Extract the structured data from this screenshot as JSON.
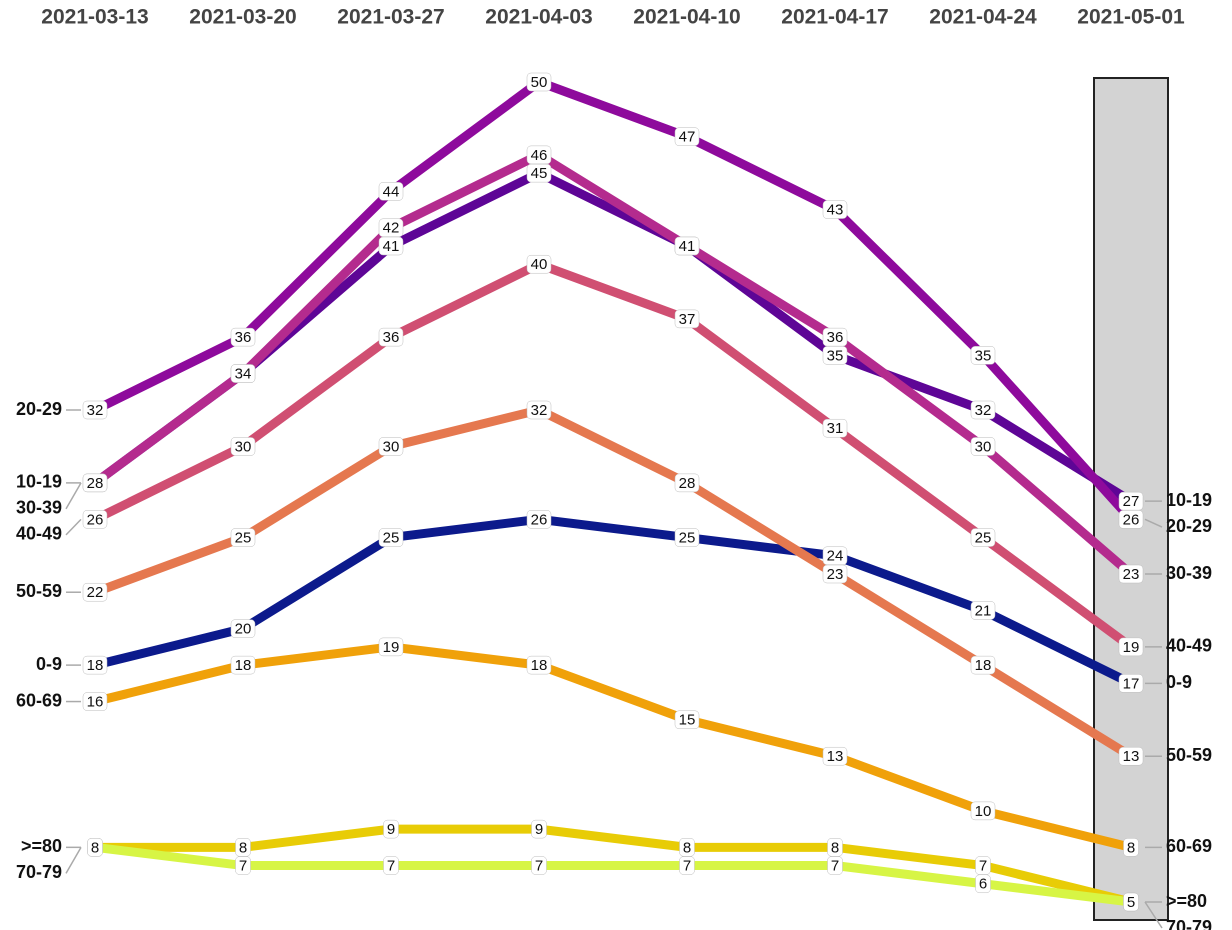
{
  "chart_data": {
    "type": "line",
    "categories": [
      "2021-03-13",
      "2021-03-20",
      "2021-03-27",
      "2021-04-03",
      "2021-04-10",
      "2021-04-17",
      "2021-04-24",
      "2021-05-01"
    ],
    "series": [
      {
        "name": "0-9",
        "color": "#0c1a8c",
        "values": [
          18,
          20,
          25,
          26,
          25,
          24,
          21,
          17
        ]
      },
      {
        "name": "10-19",
        "color": "#5e0596",
        "values": [
          28,
          34,
          41,
          45,
          41,
          35,
          32,
          27
        ]
      },
      {
        "name": "20-29",
        "color": "#8e0a9c",
        "values": [
          32,
          36,
          44,
          50,
          47,
          43,
          35,
          26
        ]
      },
      {
        "name": "30-39",
        "color": "#b42b8e",
        "values": [
          28,
          34,
          42,
          46,
          41,
          36,
          30,
          23
        ]
      },
      {
        "name": "40-49",
        "color": "#d04f72",
        "values": [
          26,
          30,
          36,
          40,
          37,
          31,
          25,
          19
        ]
      },
      {
        "name": "50-59",
        "color": "#e5784f",
        "values": [
          22,
          25,
          30,
          32,
          28,
          23,
          18,
          13
        ]
      },
      {
        "name": "60-69",
        "color": "#f0a10a",
        "values": [
          16,
          18,
          19,
          18,
          15,
          13,
          10,
          8
        ]
      },
      {
        "name": ">=80",
        "color": "#e8cc06",
        "values": [
          8,
          8,
          9,
          9,
          8,
          8,
          7,
          5
        ]
      },
      {
        "name": "70-79",
        "color": "#d7f545",
        "values": [
          8,
          7,
          7,
          7,
          7,
          7,
          6,
          5
        ]
      }
    ]
  }
}
